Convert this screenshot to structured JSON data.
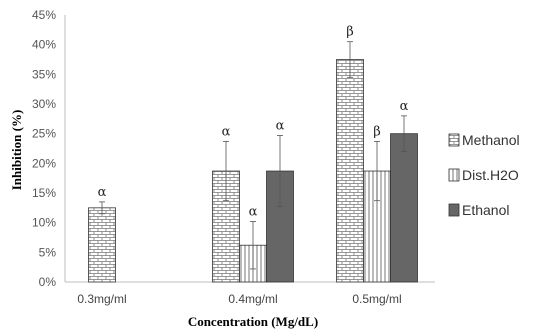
{
  "chart_data": {
    "type": "bar",
    "xlabel": "Concentration (Mg/dL)",
    "ylabel": "Inhibition (%)",
    "ylim": [
      0,
      45
    ],
    "yticks": [
      "0%",
      "5%",
      "10%",
      "15%",
      "20%",
      "25%",
      "30%",
      "35%",
      "40%",
      "45%"
    ],
    "grid": false,
    "legend_position": "right",
    "categories": [
      "0.3mg/ml",
      "0.4mg/ml",
      "0.5mg/ml"
    ],
    "series": [
      {
        "name": "Methanol",
        "pattern": "brick",
        "color": "#ffffff",
        "values": [
          12.5,
          18.7,
          37.5
        ],
        "errors": [
          1.0,
          5.0,
          3.0
        ],
        "significance": [
          "α",
          "α",
          "β"
        ]
      },
      {
        "name": "Dist.H2O",
        "pattern": "vertical-lines",
        "color": "#ffffff",
        "values": [
          null,
          6.2,
          18.7
        ],
        "errors": [
          null,
          4.0,
          5.0
        ],
        "significance": [
          null,
          "α",
          "β"
        ]
      },
      {
        "name": "Ethanol",
        "pattern": "solid",
        "color": "#666666",
        "values": [
          null,
          18.7,
          25.0
        ],
        "errors": [
          null,
          6.0,
          3.0
        ],
        "significance": [
          null,
          "α",
          "α"
        ]
      }
    ]
  }
}
